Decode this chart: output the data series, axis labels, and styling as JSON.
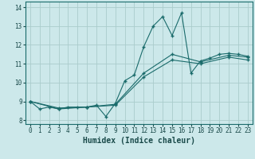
{
  "xlabel": "Humidex (Indice chaleur)",
  "background_color": "#cce8ea",
  "grid_color": "#aacccc",
  "line_color": "#1a6b6b",
  "xlim": [
    -0.5,
    23.5
  ],
  "ylim": [
    7.8,
    14.3
  ],
  "xticks": [
    0,
    1,
    2,
    3,
    4,
    5,
    6,
    7,
    8,
    9,
    10,
    11,
    12,
    13,
    14,
    15,
    16,
    17,
    18,
    19,
    20,
    21,
    22,
    23
  ],
  "yticks": [
    8,
    9,
    10,
    11,
    12,
    13,
    14
  ],
  "curve1_x": [
    0,
    1,
    2,
    3,
    4,
    5,
    6,
    7,
    8,
    9,
    10,
    11,
    12,
    13,
    14,
    15,
    16,
    17,
    18,
    19,
    20,
    21,
    22,
    23
  ],
  "curve1_y": [
    9.0,
    8.6,
    8.7,
    8.6,
    8.7,
    8.7,
    8.7,
    8.8,
    8.2,
    8.9,
    10.1,
    10.4,
    11.9,
    13.0,
    13.5,
    12.5,
    13.7,
    10.5,
    11.15,
    11.3,
    11.5,
    11.55,
    11.5,
    11.4
  ],
  "curve2_x": [
    0,
    3,
    6,
    9,
    12,
    15,
    18,
    21,
    23
  ],
  "curve2_y": [
    9.0,
    8.65,
    8.7,
    8.85,
    10.5,
    11.5,
    11.1,
    11.45,
    11.35
  ],
  "curve3_x": [
    0,
    3,
    6,
    9,
    12,
    15,
    18,
    21,
    23
  ],
  "curve3_y": [
    9.0,
    8.6,
    8.7,
    8.8,
    10.3,
    11.2,
    11.0,
    11.35,
    11.2
  ],
  "xlabel_fontsize": 7,
  "tick_fontsize": 5.5
}
